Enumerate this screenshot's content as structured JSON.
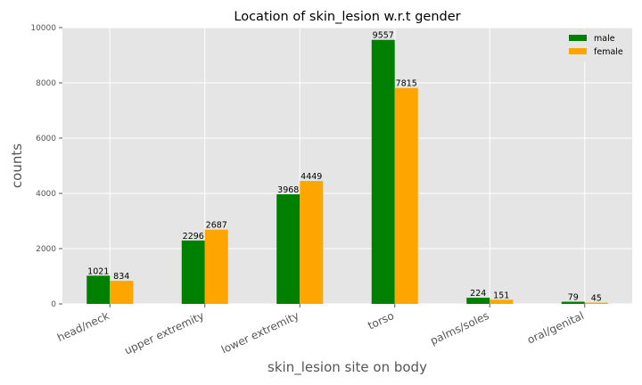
{
  "chart_data": {
    "type": "bar",
    "title": "Location of skin_lesion w.r.t gender",
    "xlabel": "skin_lesion site on body",
    "ylabel": "counts",
    "categories": [
      "head/neck",
      "upper extremity",
      "lower extremity",
      "torso",
      "palms/soles",
      "oral/genital"
    ],
    "series": [
      {
        "name": "male",
        "color": "#008000",
        "values": [
          1021,
          2296,
          3968,
          9557,
          224,
          79
        ]
      },
      {
        "name": "female",
        "color": "#FFA500",
        "values": [
          834,
          2687,
          4449,
          7815,
          151,
          45
        ]
      }
    ],
    "ylim": [
      0,
      10000
    ],
    "yticks": [
      "0",
      "2000",
      "4000",
      "6000",
      "8000",
      "10000"
    ],
    "grid": true,
    "legend_position": "top-right",
    "background": "#E5E5E5"
  }
}
